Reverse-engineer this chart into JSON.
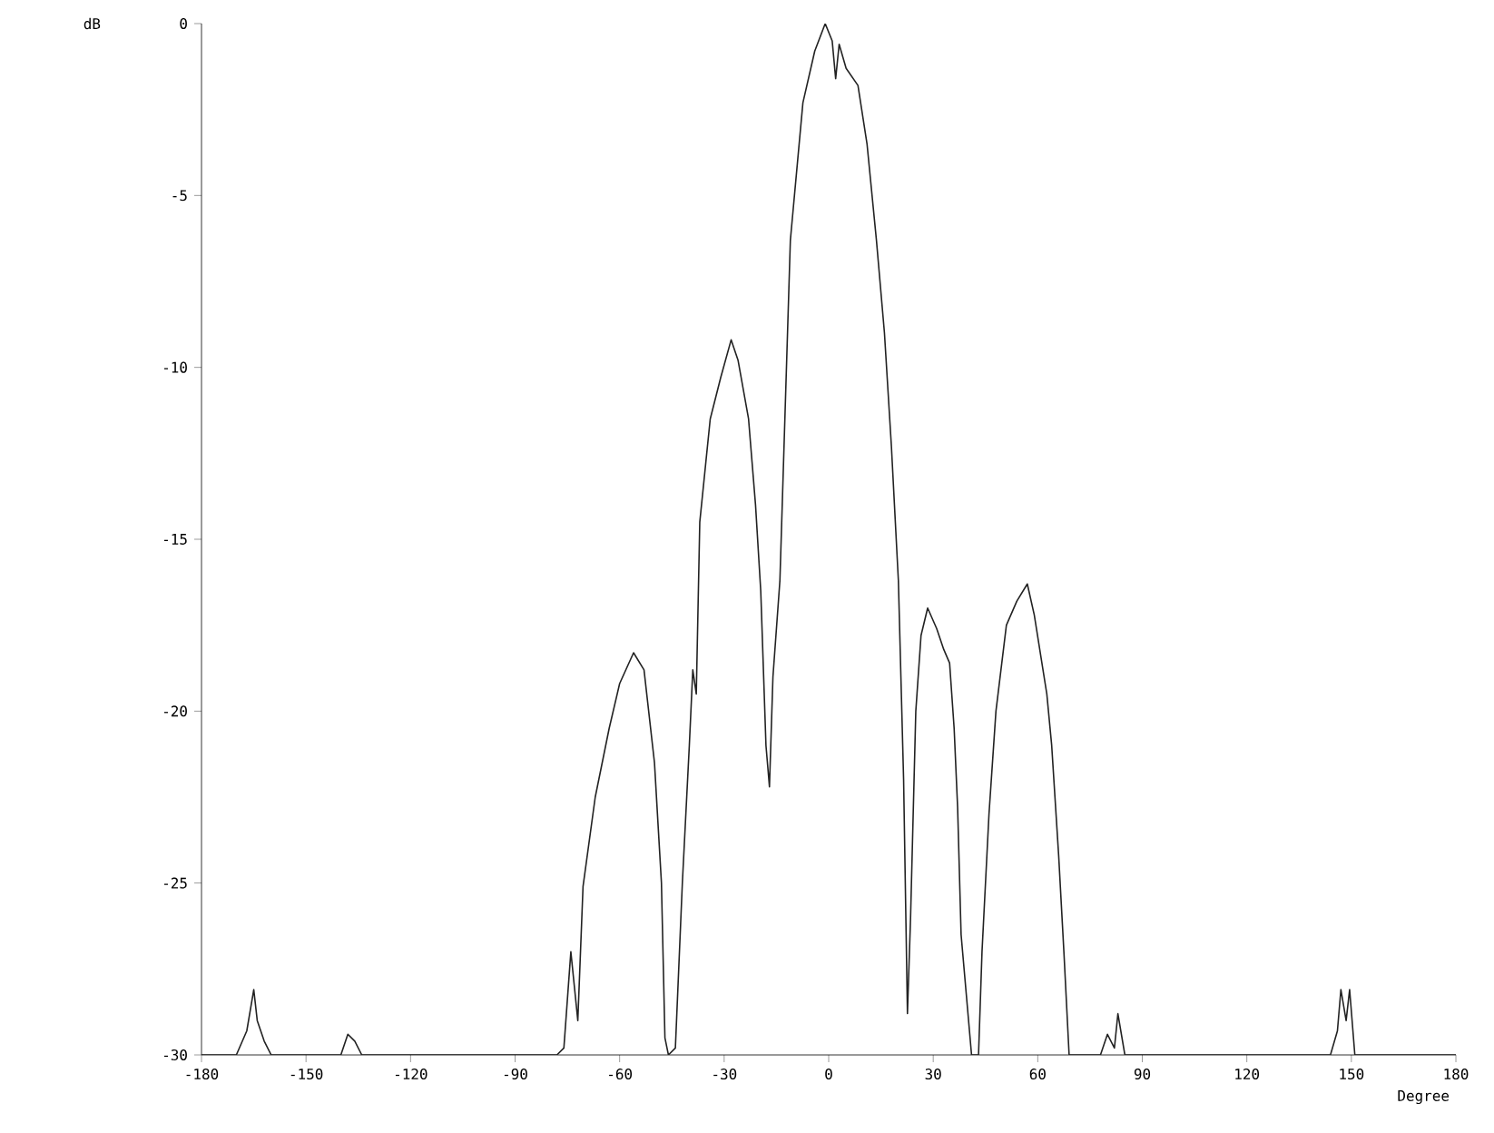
{
  "chart_data": {
    "type": "line",
    "xlabel": "Degree",
    "ylabel": "dB",
    "xlim": [
      -180,
      180
    ],
    "ylim": [
      -30,
      0
    ],
    "xticks": [
      -180,
      -150,
      -120,
      -90,
      -60,
      -30,
      0,
      30,
      60,
      90,
      120,
      150,
      180
    ],
    "yticks": [
      -30,
      -25,
      -20,
      -15,
      -10,
      -5,
      0
    ],
    "grid": false,
    "series": [
      {
        "color": "#222222",
        "x": [
          -180,
          -170,
          -167,
          -165,
          -164,
          -162,
          -160,
          -140,
          -138,
          -136,
          -134,
          -78,
          -76,
          -74,
          -72,
          -70.5,
          -67,
          -63,
          -60,
          -56,
          -53,
          -50,
          -48,
          -47,
          -46,
          -44,
          -42,
          -40,
          -39,
          -38,
          -37,
          -34,
          -31,
          -28,
          -26,
          -23,
          -21,
          -19.5,
          -18,
          -17,
          -16,
          -14,
          -11,
          -7.4,
          -4,
          -1,
          1,
          2,
          3,
          5,
          8.4,
          11,
          13.7,
          16,
          18,
          20,
          21.5,
          22.6,
          23.5,
          25,
          26.5,
          28.4,
          31,
          33,
          34.7,
          36,
          37,
          38,
          41,
          43,
          44,
          46,
          48,
          51,
          54,
          57,
          59,
          62.6,
          64,
          66,
          67.5,
          69,
          78,
          80,
          82,
          83,
          85,
          144,
          146,
          147,
          148.5,
          149.5,
          151,
          180
        ],
        "values": [
          -30,
          -30,
          -29.3,
          -28.1,
          -29,
          -29.6,
          -30,
          -30,
          -29.4,
          -29.6,
          -30,
          -30,
          -29.8,
          -27,
          -29,
          -25.1,
          -22.5,
          -20.5,
          -19.2,
          -18.3,
          -18.8,
          -21.5,
          -25,
          -29.5,
          -30,
          -29.8,
          -25,
          -21,
          -18.8,
          -19.5,
          -14.5,
          -11.5,
          -10.3,
          -9.2,
          -9.8,
          -11.5,
          -14,
          -16.5,
          -21,
          -22.2,
          -19,
          -16.2,
          -6.3,
          -2.3,
          -0.8,
          0,
          -0.5,
          -1.6,
          -0.6,
          -1.3,
          -1.8,
          -3.5,
          -6.3,
          -9,
          -12.3,
          -16.2,
          -22,
          -28.8,
          -26,
          -20,
          -17.8,
          -17,
          -17.6,
          -18.2,
          -18.6,
          -20.5,
          -22.8,
          -26.5,
          -30,
          -30,
          -27,
          -23,
          -20,
          -17.5,
          -16.8,
          -16.3,
          -17.2,
          -19.5,
          -21,
          -24.2,
          -27,
          -30,
          -30,
          -29.4,
          -29.8,
          -28.8,
          -30,
          -30,
          -29.3,
          -28.1,
          -29,
          -28.1,
          -30,
          -30
        ]
      }
    ]
  }
}
